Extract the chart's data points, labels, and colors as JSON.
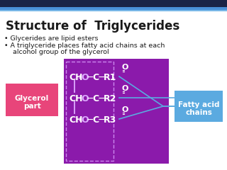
{
  "title": "Structure of  Triglycerides",
  "bullet1": "Glycerides are lipid esters",
  "bullet2a": "A triglyceride places fatty acid chains at each",
  "bullet2b": "  alcohol group of the glycerol",
  "bg_color": "#ffffff",
  "header_color": "#1a2347",
  "header_accent": "#4a90d9",
  "title_color": "#1a1a1a",
  "diagram_bg": "#8b1aab",
  "glycerol_box_bg": "#e8457a",
  "glycerol_box_color": "#ffffff",
  "fatty_acid_box_bg": "#5baae0",
  "fatty_acid_box_color": "#ffffff",
  "inner_box_border": "#cc88ee",
  "diagram_text_color": "#ffffff",
  "diagram_highlight": "#ddaaff",
  "arrow_color": "#5baae0"
}
